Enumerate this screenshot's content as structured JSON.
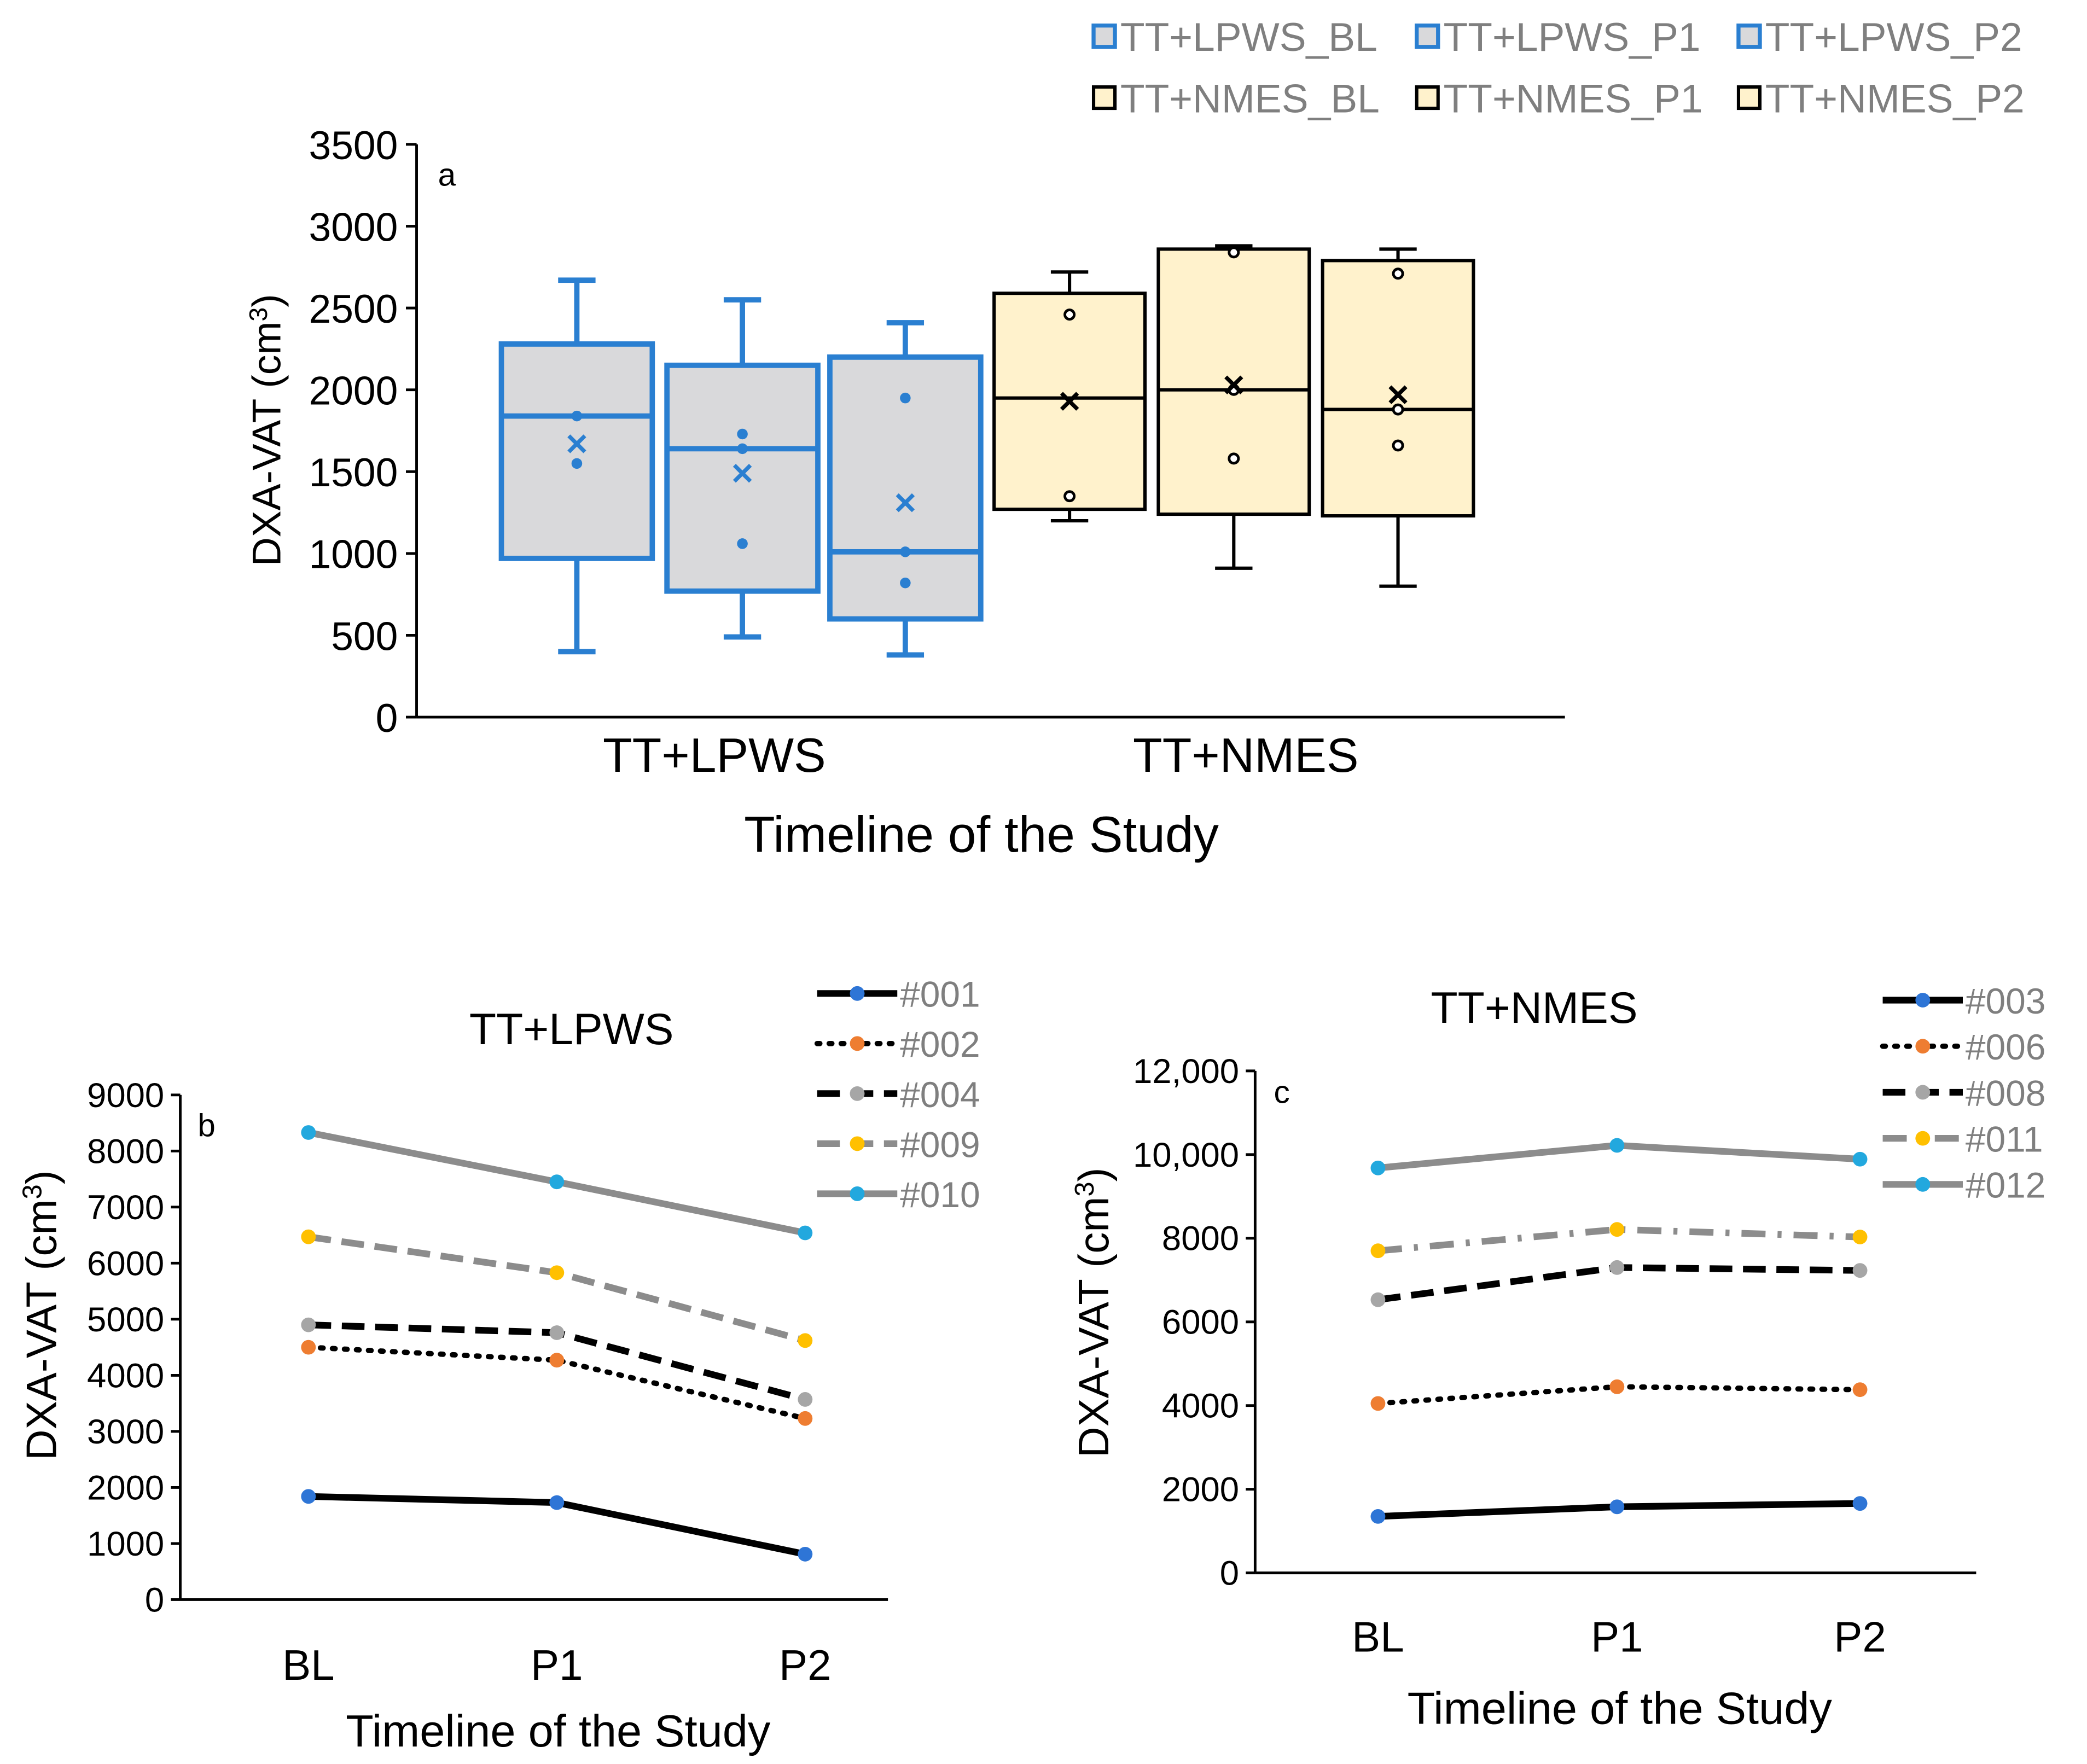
{
  "colors": {
    "lpws_edge": "#2a7fd1",
    "lpws_fill": "#d9d9db",
    "nmes_edge": "#000000",
    "nmes_fill": "#fff2cc",
    "axis": "#000000",
    "legend_text": "#7f7f7f",
    "dot_blue": "#2e75d6",
    "dot_orange": "#ee7d31",
    "dot_gray": "#a6a6a6",
    "dot_yellow": "#ffc000",
    "dot_cyan": "#22a8de",
    "line_gray": "#8c8c8c"
  },
  "chart_data": [
    {
      "type": "box",
      "panel": "a",
      "xlabel": "Timeline of the Study",
      "ylabel": "DXA-VAT (cm",
      "ylabel_sup": "3",
      "ylabel_close": ")",
      "ylim": [
        0,
        3500
      ],
      "yticks": [
        0,
        500,
        1000,
        1500,
        2000,
        2500,
        3000,
        3500
      ],
      "groups": [
        "TT+LPWS",
        "TT+NMES"
      ],
      "legend": [
        "TT+LPWS_BL",
        "TT+LPWS_P1",
        "TT+LPWS_P2",
        "TT+NMES_BL",
        "TT+NMES_P1",
        "TT+NMES_P2"
      ],
      "boxes": [
        {
          "name": "TT+LPWS_BL",
          "group": 0,
          "min": 400,
          "q1": 970,
          "median": 1840,
          "q3": 2280,
          "max": 2670,
          "mean": 1670,
          "points": [
            1840,
            1550
          ]
        },
        {
          "name": "TT+LPWS_P1",
          "group": 0,
          "min": 490,
          "q1": 770,
          "median": 1640,
          "q3": 2150,
          "max": 2550,
          "mean": 1490,
          "points": [
            1730,
            1640,
            1060
          ]
        },
        {
          "name": "TT+LPWS_P2",
          "group": 0,
          "min": 380,
          "q1": 600,
          "median": 1010,
          "q3": 2200,
          "max": 2410,
          "mean": 1310,
          "points": [
            1950,
            1010,
            820
          ]
        },
        {
          "name": "TT+NMES_BL",
          "group": 1,
          "min": 1200,
          "q1": 1270,
          "median": 1950,
          "q3": 2590,
          "max": 2720,
          "mean": 1930,
          "points": [
            2460,
            1350
          ]
        },
        {
          "name": "TT+NMES_P1",
          "group": 1,
          "min": 910,
          "q1": 1240,
          "median": 2000,
          "q3": 2860,
          "max": 2880,
          "mean": 2030,
          "points": [
            2840,
            2000,
            1580
          ]
        },
        {
          "name": "TT+NMES_P2",
          "group": 1,
          "min": 800,
          "q1": 1230,
          "median": 1880,
          "q3": 2790,
          "max": 2860,
          "mean": 1970,
          "points": [
            2710,
            1880,
            1660
          ]
        }
      ]
    },
    {
      "type": "line",
      "panel": "b",
      "title": "TT+LPWS",
      "xlabel": "Timeline of the Study",
      "ylabel": "DXA-VAT (cm",
      "ylabel_sup": "3",
      "ylabel_close": ")",
      "categories": [
        "BL",
        "P1",
        "P2"
      ],
      "ylim": [
        0,
        9000
      ],
      "yticks": [
        0,
        1000,
        2000,
        3000,
        4000,
        5000,
        6000,
        7000,
        8000,
        9000
      ],
      "ytick_labels": [
        "0",
        "1000",
        "2000",
        "3000",
        "4000",
        "5000",
        "6000",
        "7000",
        "8000",
        "9000"
      ],
      "series": [
        {
          "name": "#001",
          "values": [
            1840,
            1730,
            810
          ],
          "style": "solid-black",
          "marker": "dot_blue"
        },
        {
          "name": "#002",
          "values": [
            4500,
            4270,
            3230
          ],
          "style": "dotted-black",
          "marker": "dot_orange"
        },
        {
          "name": "#004",
          "values": [
            4900,
            4760,
            3570
          ],
          "style": "dashed-black",
          "marker": "dot_gray"
        },
        {
          "name": "#009",
          "values": [
            6470,
            5830,
            4620
          ],
          "style": "dashed-gray",
          "marker": "dot_yellow"
        },
        {
          "name": "#010",
          "values": [
            8330,
            7450,
            6540
          ],
          "style": "solid-gray",
          "marker": "dot_cyan"
        }
      ]
    },
    {
      "type": "line",
      "panel": "c",
      "title": "TT+NMES",
      "xlabel": "Timeline of the Study",
      "ylabel": "DXA-VAT (cm",
      "ylabel_sup": "3",
      "ylabel_close": ")",
      "categories": [
        "BL",
        "P1",
        "P2"
      ],
      "ylim": [
        0,
        12000
      ],
      "yticks": [
        0,
        2000,
        4000,
        6000,
        8000,
        10000,
        12000
      ],
      "ytick_labels": [
        "0",
        "2000",
        "4000",
        "6000",
        "8000",
        "10,000",
        "12,000"
      ],
      "series": [
        {
          "name": "#003",
          "values": [
            1350,
            1580,
            1660
          ],
          "style": "solid-black",
          "marker": "dot_blue"
        },
        {
          "name": "#006",
          "values": [
            4050,
            4450,
            4380
          ],
          "style": "dotted-black",
          "marker": "dot_orange"
        },
        {
          "name": "#008",
          "values": [
            6530,
            7300,
            7230
          ],
          "style": "dashed-black",
          "marker": "dot_gray"
        },
        {
          "name": "#011",
          "values": [
            7700,
            8210,
            8030
          ],
          "style": "dashdot-gray",
          "marker": "dot_yellow"
        },
        {
          "name": "#012",
          "values": [
            9680,
            10220,
            9890
          ],
          "style": "solid-gray",
          "marker": "dot_cyan"
        }
      ]
    }
  ]
}
